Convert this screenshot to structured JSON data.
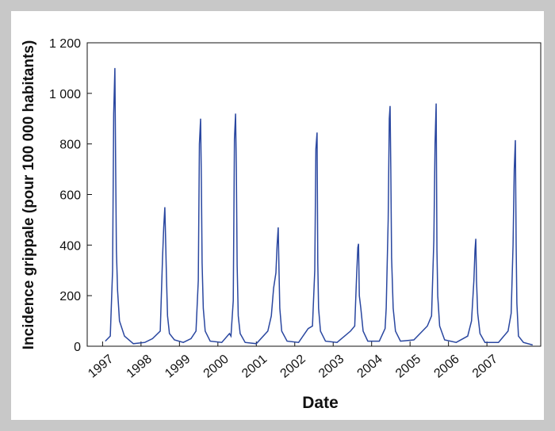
{
  "chart_data": {
    "type": "line",
    "x_label": "Date",
    "y_label": "Incidence grippale (pour 100 000 habitants)",
    "xlim": [
      1996.6,
      2008.4
    ],
    "xticks": [
      1997,
      1998,
      1999,
      2000,
      2001,
      2002,
      2003,
      2004,
      2005,
      2006,
      2007
    ],
    "ylim": [
      0,
      1200
    ],
    "yticks": [
      0,
      200,
      400,
      600,
      800,
      {
        "value": 1000,
        "label": "1 000"
      },
      {
        "value": 1200,
        "label": "1 200"
      }
    ],
    "color": "#2a47a0",
    "x": [
      1997.07,
      1997.2,
      1997.26,
      1997.29,
      1997.32,
      1997.34,
      1997.36,
      1997.39,
      1997.44,
      1997.57,
      1997.8,
      1998.1,
      1998.3,
      1998.5,
      1998.56,
      1998.59,
      1998.62,
      1998.64,
      1998.66,
      1998.69,
      1998.74,
      1998.87,
      1999.1,
      1999.3,
      1999.43,
      1999.49,
      1999.52,
      1999.55,
      1999.57,
      1999.59,
      1999.62,
      1999.67,
      1999.8,
      2000.1,
      2000.3,
      2000.34,
      2000.4,
      2000.43,
      2000.46,
      2000.48,
      2000.5,
      2000.53,
      2000.58,
      2000.71,
      2001.0,
      2001.3,
      2001.39,
      2001.45,
      2001.51,
      2001.54,
      2001.57,
      2001.59,
      2001.61,
      2001.66,
      2001.8,
      2002.1,
      2002.35,
      2002.46,
      2002.52,
      2002.55,
      2002.58,
      2002.6,
      2002.62,
      2002.67,
      2002.8,
      2003.1,
      2003.45,
      2003.56,
      2003.61,
      2003.64,
      2003.66,
      2003.68,
      2003.72,
      2003.78,
      2003.9,
      2004.2,
      2004.35,
      2004.38,
      2004.43,
      2004.46,
      2004.48,
      2004.5,
      2004.52,
      2004.56,
      2004.62,
      2004.75,
      2005.1,
      2005.45,
      2005.56,
      2005.62,
      2005.65,
      2005.68,
      2005.7,
      2005.72,
      2005.77,
      2005.9,
      2006.2,
      2006.5,
      2006.6,
      2006.66,
      2006.69,
      2006.71,
      2006.73,
      2006.76,
      2006.82,
      2006.95,
      2007.3,
      2007.55,
      2007.63,
      2007.68,
      2007.71,
      2007.74,
      2007.76,
      2007.78,
      2007.82,
      2007.95,
      2008.19
    ],
    "values": [
      20,
      40,
      300,
      920,
      1100,
      700,
      380,
      220,
      100,
      40,
      10,
      15,
      30,
      60,
      350,
      470,
      550,
      420,
      280,
      120,
      50,
      25,
      15,
      30,
      60,
      260,
      800,
      900,
      650,
      330,
      150,
      60,
      20,
      15,
      50,
      40,
      180,
      820,
      920,
      700,
      320,
      120,
      50,
      15,
      10,
      60,
      120,
      230,
      290,
      400,
      470,
      300,
      150,
      60,
      20,
      15,
      70,
      80,
      300,
      780,
      845,
      330,
      150,
      60,
      20,
      15,
      60,
      80,
      280,
      390,
      405,
      200,
      150,
      60,
      20,
      20,
      70,
      150,
      500,
      900,
      950,
      700,
      350,
      150,
      60,
      20,
      25,
      80,
      120,
      420,
      800,
      960,
      380,
      200,
      80,
      25,
      15,
      40,
      100,
      260,
      380,
      425,
      260,
      130,
      50,
      15,
      15,
      60,
      130,
      400,
      700,
      815,
      400,
      170,
      40,
      15,
      5
    ]
  }
}
